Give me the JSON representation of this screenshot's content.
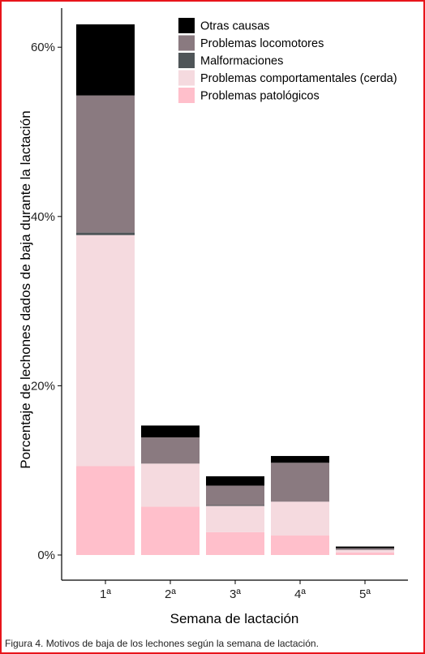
{
  "chart_data": {
    "type": "bar",
    "stacked": true,
    "categories": [
      "1ª",
      "2ª",
      "3ª",
      "4ª",
      "5ª"
    ],
    "series": [
      {
        "name": "Problemas patológicos",
        "color": "#ffbfcb",
        "values": [
          10.5,
          5.7,
          2.7,
          2.3,
          0.3
        ]
      },
      {
        "name": "Problemas comportamentales (cerda)",
        "color": "#f5dadf",
        "values": [
          27.3,
          5.1,
          3.1,
          4.0,
          0.3
        ]
      },
      {
        "name": "Malformaciones",
        "color": "#4f5558",
        "values": [
          0.3,
          0.0,
          0.1,
          0.0,
          0.0
        ]
      },
      {
        "name": "Problemas locomotores",
        "color": "#8a7a80",
        "values": [
          16.2,
          3.1,
          2.3,
          4.6,
          0.2
        ]
      },
      {
        "name": "Otras causas",
        "color": "#000000",
        "values": [
          8.4,
          1.4,
          1.1,
          0.8,
          0.2
        ]
      }
    ],
    "legend_order": [
      "Otras causas",
      "Problemas locomotores",
      "Malformaciones",
      "Problemas comportamentales (cerda)",
      "Problemas patológicos"
    ],
    "yticks": [
      "0%",
      "20%",
      "40%",
      "60%"
    ],
    "ytick_values": [
      0,
      20,
      40,
      60
    ],
    "ylim": [
      -3,
      67
    ],
    "xlabel": "Semana de lactación",
    "ylabel": "Porcentaje de lechones dados de baja durante la lactación",
    "legend_position": "top-right",
    "grid": false
  },
  "caption": "Figura 4. Motivos de baja de los lechones según la semana de lactación.",
  "colors": {
    "frame": "#e8151b",
    "axis": "#000000"
  }
}
